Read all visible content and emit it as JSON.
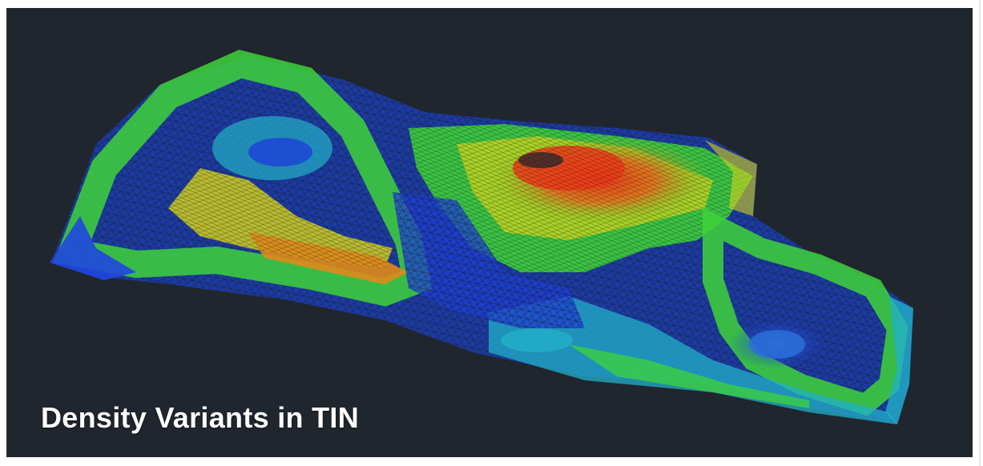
{
  "caption": {
    "text": "Density Variants in TIN"
  },
  "colors": {
    "background": "#20262d",
    "low": "#1e40d8",
    "mid_low": "#22b0c8",
    "mid": "#3ed43a",
    "mid_high": "#d6d21e",
    "high": "#ee3a16"
  }
}
